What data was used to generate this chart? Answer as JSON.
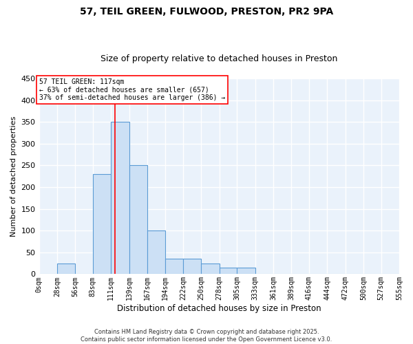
{
  "title1": "57, TEIL GREEN, FULWOOD, PRESTON, PR2 9PA",
  "title2": "Size of property relative to detached houses in Preston",
  "xlabel": "Distribution of detached houses by size in Preston",
  "ylabel": "Number of detached properties",
  "bin_edges": [
    0,
    28,
    56,
    83,
    111,
    139,
    167,
    194,
    222,
    250,
    278,
    305,
    333,
    361,
    389,
    416,
    444,
    472,
    500,
    527,
    555
  ],
  "bar_heights": [
    0,
    25,
    0,
    230,
    350,
    250,
    100,
    35,
    35,
    25,
    15,
    15,
    0,
    0,
    0,
    0,
    0,
    0,
    0,
    0
  ],
  "bar_facecolor": "#cce0f5",
  "bar_edgecolor": "#5b9bd5",
  "bar_linewidth": 0.8,
  "vline_x": 117,
  "vline_color": "red",
  "vline_linewidth": 1.2,
  "annotation_text": "57 TEIL GREEN: 117sqm\n← 63% of detached houses are smaller (657)\n37% of semi-detached houses are larger (386) →",
  "annotation_fontsize": 7,
  "annotation_boxcolor": "white",
  "annotation_edgecolor": "red",
  "ylim": [
    0,
    450
  ],
  "yticks": [
    0,
    50,
    100,
    150,
    200,
    250,
    300,
    350,
    400,
    450
  ],
  "xtick_labels": [
    "0sqm",
    "28sqm",
    "56sqm",
    "83sqm",
    "111sqm",
    "139sqm",
    "167sqm",
    "194sqm",
    "222sqm",
    "250sqm",
    "278sqm",
    "305sqm",
    "333sqm",
    "361sqm",
    "389sqm",
    "416sqm",
    "444sqm",
    "472sqm",
    "500sqm",
    "527sqm",
    "555sqm"
  ],
  "background_color": "#eaf2fb",
  "grid_color": "white",
  "footer_text": "Contains HM Land Registry data © Crown copyright and database right 2025.\nContains public sector information licensed under the Open Government Licence v3.0.",
  "title1_fontsize": 10,
  "title2_fontsize": 9,
  "ylabel_fontsize": 8,
  "xlabel_fontsize": 8.5,
  "ytick_fontsize": 8,
  "xtick_fontsize": 7,
  "footer_fontsize": 6
}
